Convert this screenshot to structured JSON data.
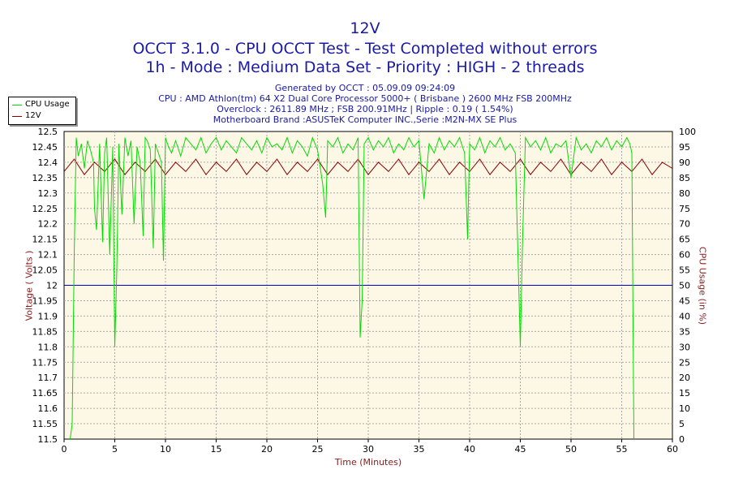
{
  "header": {
    "title": "12V",
    "subtitle_1": "OCCT 3.1.0 - CPU OCCT Test - Test Completed without errors",
    "subtitle_2": "1h - Mode : Medium Data Set - Priority : HIGH - 2 threads"
  },
  "info": {
    "line_1": "Generated by OCCT : 05.09.09 09:24:09",
    "line_2": "CPU : AMD Athlon(tm) 64 X2 Dual Core Processor 5000+ ( Brisbane ) 2600 MHz FSB 200MHz",
    "line_3": "Overclock : 2611.89 MHz ; FSB 200.91MHz | Ripple : 0.19 ( 1.54%)",
    "line_4": "Motherboard Brand :ASUSTeK Computer INC.,Serie :M2N-MX SE Plus"
  },
  "legend": {
    "items": [
      {
        "label": "CPU Usage",
        "color": "#00dd00"
      },
      {
        "label": "12V",
        "color": "#8b0000"
      }
    ]
  },
  "colors": {
    "plot_background": "#fdf8e6",
    "grid": "#a8a8a8",
    "reference_line": "#0000cc",
    "axis_label": "#8b1a1a",
    "title": "#1a1aa6"
  },
  "chart_data": {
    "type": "line",
    "title": "12V",
    "xlabel": "Time (Minutes)",
    "ylabel_left": "Voltage ( Volts )",
    "ylabel_right": "CPU Usage (in %)",
    "xlim": [
      0,
      60
    ],
    "ylim_left": [
      11.5,
      12.5
    ],
    "ylim_right": [
      0,
      100
    ],
    "x_ticks": [
      "0",
      "5",
      "10",
      "15",
      "20",
      "25",
      "30",
      "35",
      "40",
      "45",
      "50",
      "55",
      "60"
    ],
    "y_left_ticks": [
      "11.5",
      "11.55",
      "11.6",
      "11.65",
      "11.7",
      "11.75",
      "11.8",
      "11.85",
      "11.9",
      "11.95",
      "12",
      "12.05",
      "12.1",
      "12.15",
      "12.2",
      "12.25",
      "12.3",
      "12.35",
      "12.4",
      "12.45",
      "12.5"
    ],
    "y_right_ticks": [
      "0",
      "5",
      "10",
      "15",
      "20",
      "25",
      "30",
      "35",
      "40",
      "45",
      "50",
      "55",
      "60",
      "65",
      "70",
      "75",
      "80",
      "85",
      "90",
      "95",
      "100"
    ],
    "grid": true,
    "legend_position": "top-left",
    "reference_line": {
      "axis": "left",
      "value": 12.0
    },
    "series": [
      {
        "name": "CPU Usage",
        "axis": "right",
        "x": [
          0.6,
          0.8,
          1.0,
          1.2,
          1.4,
          1.7,
          2.0,
          2.3,
          2.6,
          2.9,
          3.0,
          3.2,
          3.5,
          3.8,
          4.0,
          4.2,
          4.5,
          4.8,
          5.0,
          5.2,
          5.4,
          5.7,
          6.0,
          6.3,
          6.6,
          6.9,
          7.2,
          7.5,
          7.8,
          8.0,
          8.2,
          8.5,
          8.8,
          9.0,
          9.3,
          9.6,
          9.8,
          10.0,
          10.3,
          10.6,
          11.0,
          11.5,
          12.0,
          12.5,
          13.0,
          13.5,
          14.0,
          14.5,
          15.0,
          15.5,
          16.0,
          16.5,
          17.0,
          17.5,
          18.0,
          18.5,
          19.0,
          19.5,
          20.0,
          20.5,
          21.0,
          21.5,
          22.0,
          22.5,
          23.0,
          23.5,
          24.0,
          24.5,
          25.0,
          25.5,
          25.8,
          26.0,
          26.5,
          27.0,
          27.5,
          28.0,
          28.5,
          29.0,
          29.2,
          29.4,
          29.6,
          30.0,
          30.5,
          31.0,
          31.5,
          32.0,
          32.5,
          33.0,
          33.5,
          34.0,
          34.5,
          35.0,
          35.5,
          36.0,
          36.5,
          37.0,
          37.5,
          38.0,
          38.5,
          39.0,
          39.5,
          39.8,
          40.0,
          40.5,
          41.0,
          41.5,
          42.0,
          42.5,
          43.0,
          43.5,
          44.0,
          44.5,
          45.0,
          45.2,
          45.5,
          46.0,
          46.5,
          47.0,
          47.5,
          48.0,
          48.5,
          49.0,
          49.5,
          50.0,
          50.5,
          51.0,
          51.5,
          52.0,
          52.5,
          53.0,
          53.5,
          54.0,
          54.5,
          55.0,
          55.5,
          55.8,
          56.0,
          56.2
        ],
        "values": [
          0,
          5,
          60,
          98,
          92,
          96,
          88,
          97,
          94,
          90,
          75,
          68,
          96,
          64,
          93,
          98,
          60,
          95,
          30,
          55,
          96,
          73,
          98,
          92,
          97,
          70,
          95,
          90,
          66,
          98,
          97,
          94,
          62,
          96,
          93,
          90,
          58,
          98,
          95,
          93,
          97,
          92,
          98,
          96,
          94,
          98,
          93,
          96,
          98,
          94,
          97,
          95,
          93,
          98,
          96,
          94,
          97,
          93,
          98,
          95,
          96,
          94,
          98,
          93,
          97,
          95,
          92,
          98,
          94,
          83,
          72,
          97,
          95,
          98,
          93,
          96,
          94,
          98,
          33,
          45,
          96,
          98,
          94,
          97,
          95,
          98,
          93,
          96,
          94,
          98,
          95,
          97,
          78,
          96,
          93,
          98,
          94,
          97,
          95,
          98,
          93,
          65,
          96,
          94,
          98,
          93,
          97,
          95,
          98,
          94,
          96,
          93,
          30,
          62,
          98,
          95,
          97,
          94,
          98,
          93,
          96,
          95,
          97,
          85,
          98,
          94,
          96,
          93,
          97,
          95,
          98,
          94,
          97,
          95,
          98,
          96,
          93,
          0
        ]
      },
      {
        "name": "12V",
        "axis": "left",
        "x": [
          0.0,
          1.0,
          2.0,
          3.0,
          4.0,
          5.0,
          6.0,
          7.0,
          8.0,
          9.0,
          10.0,
          11.0,
          12.0,
          13.0,
          14.0,
          15.0,
          16.0,
          17.0,
          18.0,
          19.0,
          20.0,
          21.0,
          22.0,
          23.0,
          24.0,
          25.0,
          26.0,
          27.0,
          28.0,
          29.0,
          30.0,
          31.0,
          32.0,
          33.0,
          34.0,
          35.0,
          36.0,
          37.0,
          38.0,
          39.0,
          40.0,
          41.0,
          42.0,
          43.0,
          44.0,
          45.0,
          46.0,
          47.0,
          48.0,
          49.0,
          50.0,
          51.0,
          52.0,
          53.0,
          54.0,
          55.0,
          56.0,
          57.0,
          58.0,
          59.0,
          60.0
        ],
        "values": [
          12.37,
          12.41,
          12.36,
          12.4,
          12.37,
          12.41,
          12.36,
          12.4,
          12.37,
          12.41,
          12.36,
          12.4,
          12.37,
          12.41,
          12.36,
          12.4,
          12.37,
          12.41,
          12.36,
          12.4,
          12.37,
          12.41,
          12.36,
          12.4,
          12.37,
          12.41,
          12.36,
          12.4,
          12.37,
          12.41,
          12.36,
          12.4,
          12.37,
          12.41,
          12.36,
          12.4,
          12.37,
          12.41,
          12.36,
          12.4,
          12.37,
          12.41,
          12.36,
          12.4,
          12.37,
          12.41,
          12.36,
          12.4,
          12.37,
          12.41,
          12.36,
          12.4,
          12.37,
          12.41,
          12.36,
          12.4,
          12.37,
          12.41,
          12.36,
          12.4,
          12.38
        ]
      }
    ]
  }
}
